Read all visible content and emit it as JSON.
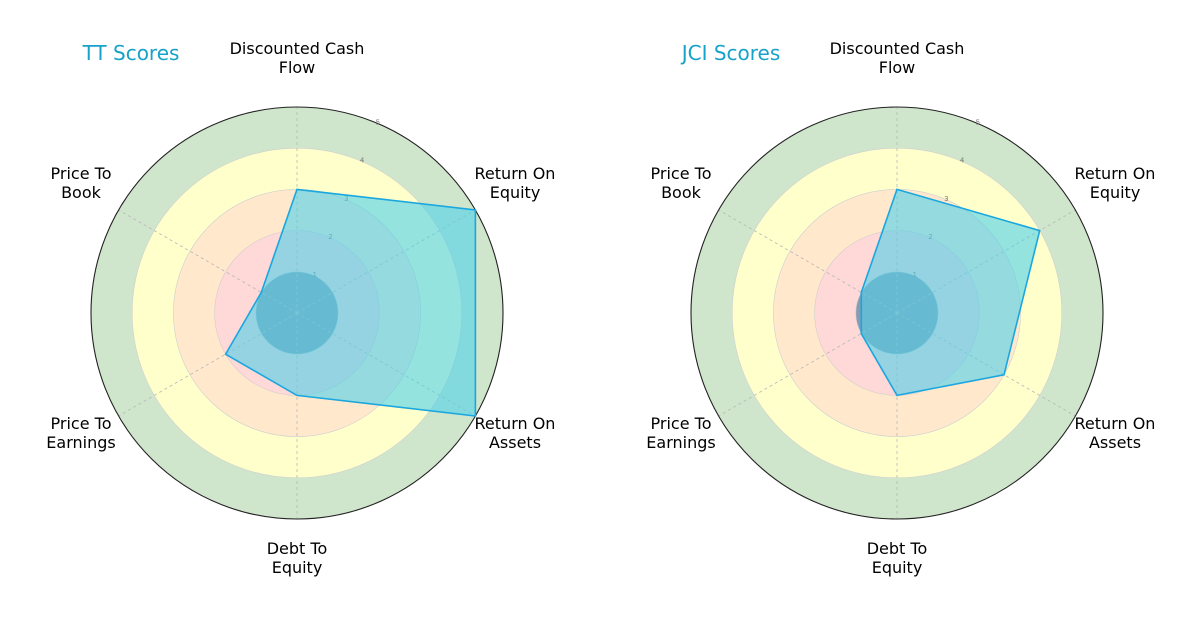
{
  "chart_data": [
    {
      "type": "radar",
      "title": "TT Scores",
      "categories": [
        "Discounted Cash Flow",
        "Return On Equity",
        "Return On Assets",
        "Debt To Equity",
        "Price To Earnings",
        "Price To Book"
      ],
      "category_lines": [
        [
          "Discounted Cash",
          "Flow"
        ],
        [
          "Return On",
          "Equity"
        ],
        [
          "Return On",
          "Assets"
        ],
        [
          "Debt To",
          "Equity"
        ],
        [
          "Price To",
          "Earnings"
        ],
        [
          "Price To",
          "Book"
        ]
      ],
      "series": [
        {
          "values": [
            3,
            5,
            5,
            2,
            2,
            1
          ]
        }
      ],
      "rlim": [
        0,
        5
      ],
      "rticks": [
        "1",
        "2",
        "3",
        "4",
        "5"
      ],
      "zones": [
        {
          "from": 0,
          "to": 1,
          "color": "#8a9bb0"
        },
        {
          "from": 1,
          "to": 2,
          "color": "#ffd8d8"
        },
        {
          "from": 2,
          "to": 3,
          "color": "#ffe8cc"
        },
        {
          "from": 3,
          "to": 4,
          "color": "#ffffcc"
        },
        {
          "from": 4,
          "to": 5,
          "color": "#d0e6cc"
        }
      ]
    },
    {
      "type": "radar",
      "title": "JCI Scores",
      "categories": [
        "Discounted Cash Flow",
        "Return On Equity",
        "Return On Assets",
        "Debt To Equity",
        "Price To Earnings",
        "Price To Book"
      ],
      "category_lines": [
        [
          "Discounted Cash",
          "Flow"
        ],
        [
          "Return On",
          "Equity"
        ],
        [
          "Return On",
          "Assets"
        ],
        [
          "Debt To",
          "Equity"
        ],
        [
          "Price To",
          "Earnings"
        ],
        [
          "Price To",
          "Book"
        ]
      ],
      "series": [
        {
          "values": [
            3,
            4,
            3,
            2,
            1,
            1
          ]
        }
      ],
      "rlim": [
        0,
        5
      ],
      "rticks": [
        "1",
        "2",
        "3",
        "4",
        "5"
      ],
      "zones": [
        {
          "from": 0,
          "to": 1,
          "color": "#8a9bb0"
        },
        {
          "from": 1,
          "to": 2,
          "color": "#ffd8d8"
        },
        {
          "from": 2,
          "to": 3,
          "color": "#ffe8cc"
        },
        {
          "from": 3,
          "to": 4,
          "color": "#ffffcc"
        },
        {
          "from": 4,
          "to": 5,
          "color": "#d0e6cc"
        }
      ]
    }
  ],
  "colors": {
    "title": "#17a2c8",
    "series_fill": "#4fd0ea",
    "series_stroke": "#1aa7e0"
  }
}
